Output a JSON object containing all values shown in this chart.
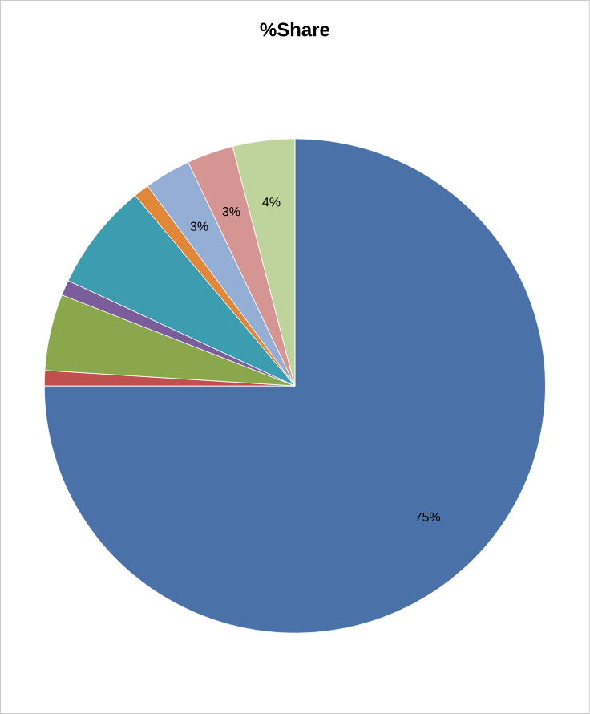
{
  "chart_data": {
    "type": "pie",
    "title": "%Share",
    "categories": [
      null,
      null,
      null,
      null,
      null,
      null,
      null,
      null,
      null
    ],
    "values": [
      75,
      1,
      5,
      1,
      7,
      1,
      3,
      3,
      4
    ],
    "value_labels": [
      "75%",
      null,
      null,
      null,
      null,
      null,
      "3%",
      "3%",
      "4%"
    ],
    "colors": [
      "#4a72a8",
      "#c0504d",
      "#8aa84b",
      "#7a5d9a",
      "#3c9db0",
      "#e0873a",
      "#95aed6",
      "#d49593",
      "#bfd39c"
    ]
  }
}
